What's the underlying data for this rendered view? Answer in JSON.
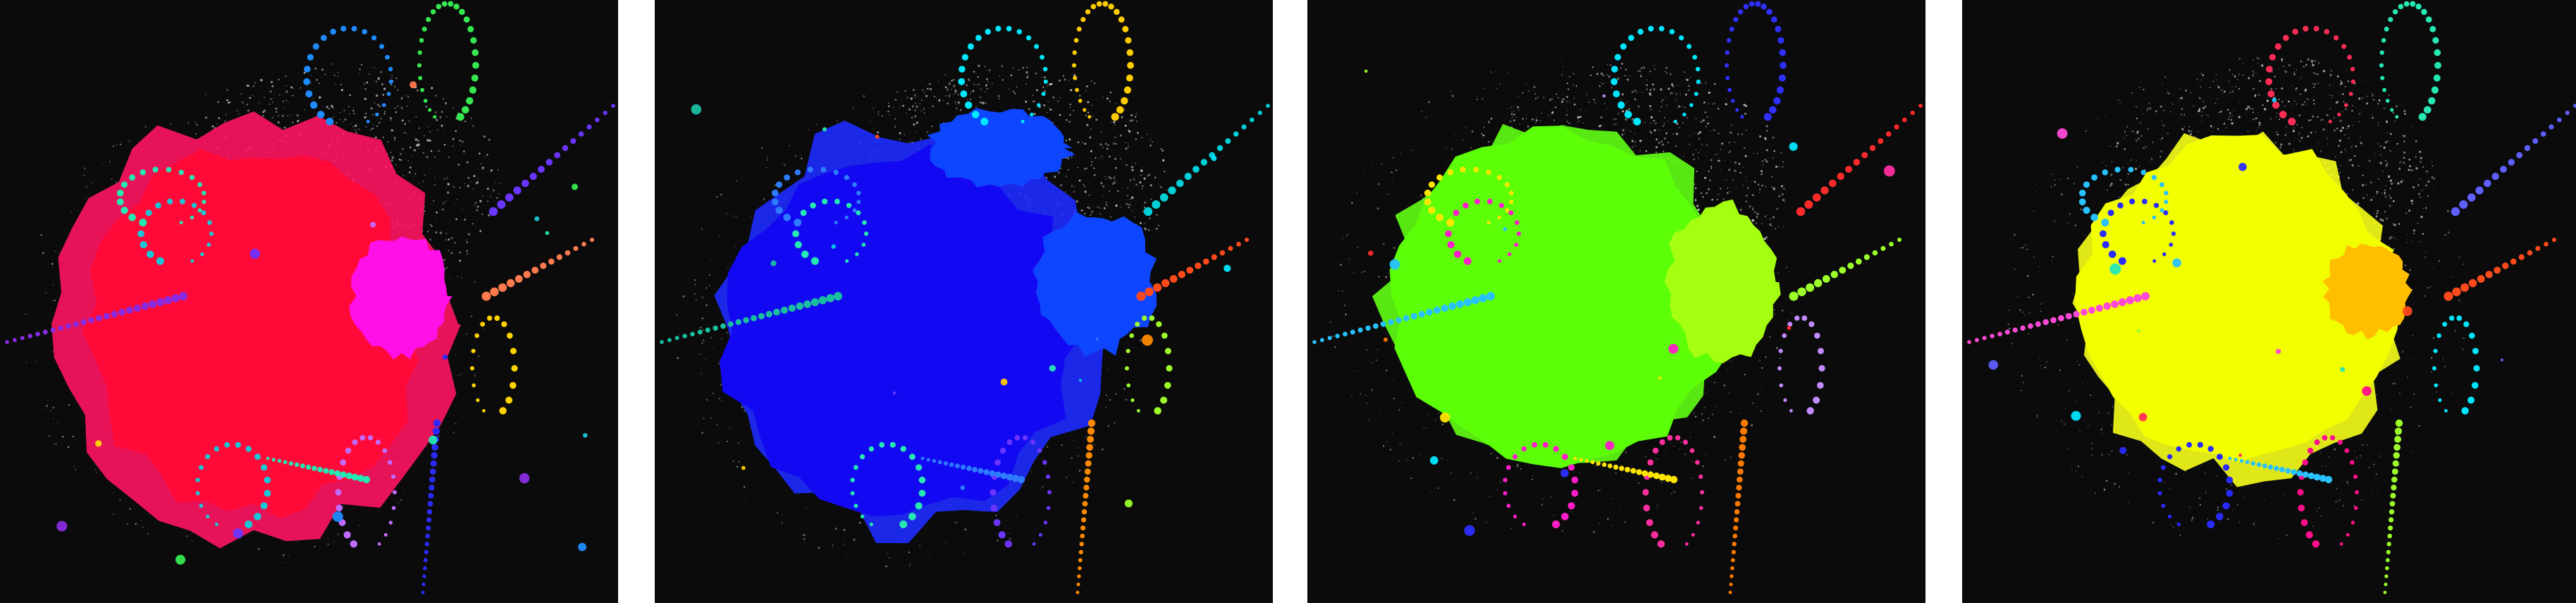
{
  "figure": {
    "panels": [
      {
        "id": "panel-1",
        "background": "#0b0b0b",
        "palette": {
          "main": "#ff0a38",
          "halo": "#ff1462",
          "secondary": "#ff10e6",
          "points": "#d9d9d9",
          "trail_colors": [
            "#8a2be2",
            "#19c6d6",
            "#25e8b3",
            "#35e84f",
            "#1f8cff",
            "#6b35ff",
            "#ff7a4d",
            "#ffd400",
            "#2a2aff",
            "#c26bff"
          ]
        }
      },
      {
        "id": "panel-2",
        "background": "#0b0b0b",
        "palette": {
          "main": "#1208f2",
          "halo": "#1e2bff",
          "secondary": "#0e45ff",
          "points": "#d9d9d9",
          "trail_colors": [
            "#1abf9f",
            "#25e8b3",
            "#2d7cff",
            "#ffcc00",
            "#00e8ff",
            "#00cfd8",
            "#ff4b1b",
            "#9cff2a",
            "#ff8a00",
            "#6b35ff"
          ]
        }
      },
      {
        "id": "panel-3",
        "background": "#0b0b0b",
        "palette": {
          "main": "#5cff08",
          "halo": "#62ff14",
          "secondary": "#a5ff11",
          "points": "#d9d9d9",
          "trail_colors": [
            "#27c2ff",
            "#ff1ec9",
            "#ffe600",
            "#2f2fff",
            "#00e6ff",
            "#ff2b2b",
            "#9cff2a",
            "#c38bff",
            "#ff7a00",
            "#ff2f9f"
          ]
        }
      },
      {
        "id": "panel-4",
        "background": "#0b0b0b",
        "palette": {
          "main": "#f2ff00",
          "halo": "#f6ff1a",
          "secondary": "#ffbf00",
          "points": "#d9d9d9",
          "trail_colors": [
            "#ff4ad8",
            "#2a2aff",
            "#27c2ff",
            "#25e8b3",
            "#ff2d55",
            "#5f5fff",
            "#ff4b1b",
            "#00e6ff",
            "#9cff2a",
            "#ff0f8a"
          ]
        }
      }
    ]
  }
}
